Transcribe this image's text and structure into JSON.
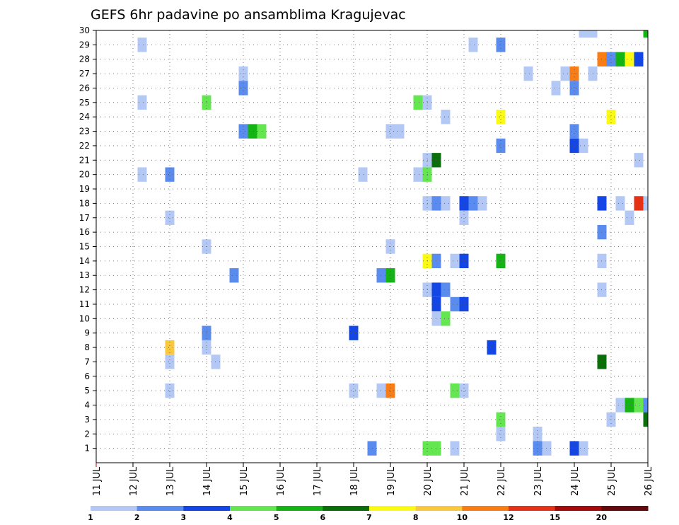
{
  "chart_data": {
    "type": "heatmap",
    "title": "GEFS 6hr padavine po ansamblima Kragujevac",
    "xlabel": "",
    "ylabel": "",
    "x_ticks": [
      "11 JUL",
      "12 JUL",
      "13 JUL",
      "14 JUL",
      "15 JUL",
      "16 JUL",
      "17 JUL",
      "18 JUL",
      "19 JUL",
      "20 JUL",
      "21 JUL",
      "22 JUL",
      "23 JUL",
      "24 JUL",
      "25 JUL",
      "26 JUL"
    ],
    "y_ticks": [
      1,
      2,
      3,
      4,
      5,
      6,
      7,
      8,
      9,
      10,
      11,
      12,
      13,
      14,
      15,
      16,
      17,
      18,
      19,
      20,
      21,
      22,
      23,
      24,
      25,
      26,
      27,
      28,
      29,
      30
    ],
    "xlim": [
      0,
      15
    ],
    "ylim": [
      0,
      30
    ],
    "grid": true,
    "x_unit": "days since 11 JUL",
    "y_unit": "ensemble member",
    "legend": {
      "position": "bottom",
      "thresholds": [
        "1",
        "2",
        "3",
        "4",
        "5",
        "6",
        "7",
        "8",
        "10",
        "12",
        "15",
        "20"
      ],
      "colors": [
        "#b4c8f5",
        "#5a8cf0",
        "#1446e6",
        "#64e650",
        "#14b414",
        "#0a6e0a",
        "#fafa14",
        "#fac83c",
        "#fa7d14",
        "#e63214",
        "#a50a0a",
        "#640a0a"
      ]
    },
    "cells": [
      {
        "x": 13.25,
        "y": 30,
        "c": 0
      },
      {
        "x": 13.5,
        "y": 30,
        "c": 0
      },
      {
        "x": 15,
        "y": 30,
        "c": 4
      },
      {
        "x": 1.25,
        "y": 29,
        "c": 0
      },
      {
        "x": 10.25,
        "y": 29,
        "c": 0
      },
      {
        "x": 11,
        "y": 29,
        "c": 1
      },
      {
        "x": 13.75,
        "y": 28,
        "c": 8
      },
      {
        "x": 14,
        "y": 28,
        "c": 1
      },
      {
        "x": 14.25,
        "y": 28,
        "c": 4
      },
      {
        "x": 14.5,
        "y": 28,
        "c": 6
      },
      {
        "x": 14.75,
        "y": 28,
        "c": 2
      },
      {
        "x": 4,
        "y": 27,
        "c": 0
      },
      {
        "x": 11.75,
        "y": 27,
        "c": 0
      },
      {
        "x": 12.75,
        "y": 27,
        "c": 0
      },
      {
        "x": 13,
        "y": 27,
        "c": 8
      },
      {
        "x": 13.5,
        "y": 27,
        "c": 0
      },
      {
        "x": 4,
        "y": 26,
        "c": 1
      },
      {
        "x": 12.5,
        "y": 26,
        "c": 0
      },
      {
        "x": 13,
        "y": 26,
        "c": 1
      },
      {
        "x": 1.25,
        "y": 25,
        "c": 0
      },
      {
        "x": 3,
        "y": 25,
        "c": 3
      },
      {
        "x": 8.75,
        "y": 25,
        "c": 3
      },
      {
        "x": 9,
        "y": 25,
        "c": 0
      },
      {
        "x": 9.5,
        "y": 24,
        "c": 0
      },
      {
        "x": 11,
        "y": 24,
        "c": 6
      },
      {
        "x": 14,
        "y": 24,
        "c": 6
      },
      {
        "x": 4,
        "y": 23,
        "c": 1
      },
      {
        "x": 4.25,
        "y": 23,
        "c": 4
      },
      {
        "x": 4.5,
        "y": 23,
        "c": 3
      },
      {
        "x": 8,
        "y": 23,
        "c": 0
      },
      {
        "x": 8.25,
        "y": 23,
        "c": 0
      },
      {
        "x": 13,
        "y": 23,
        "c": 1
      },
      {
        "x": 11,
        "y": 22,
        "c": 1
      },
      {
        "x": 13,
        "y": 22,
        "c": 2
      },
      {
        "x": 13.25,
        "y": 22,
        "c": 0
      },
      {
        "x": 9,
        "y": 21,
        "c": 0
      },
      {
        "x": 9.25,
        "y": 21,
        "c": 5
      },
      {
        "x": 14.75,
        "y": 21,
        "c": 0
      },
      {
        "x": 1.25,
        "y": 20,
        "c": 0
      },
      {
        "x": 2,
        "y": 20,
        "c": 1
      },
      {
        "x": 7.25,
        "y": 20,
        "c": 0
      },
      {
        "x": 8.75,
        "y": 20,
        "c": 0
      },
      {
        "x": 9,
        "y": 20,
        "c": 3
      },
      {
        "x": 9,
        "y": 18,
        "c": 0
      },
      {
        "x": 9.25,
        "y": 18,
        "c": 1
      },
      {
        "x": 9.5,
        "y": 18,
        "c": 0
      },
      {
        "x": 10,
        "y": 18,
        "c": 2
      },
      {
        "x": 10.25,
        "y": 18,
        "c": 1
      },
      {
        "x": 10.5,
        "y": 18,
        "c": 0
      },
      {
        "x": 13.75,
        "y": 18,
        "c": 2
      },
      {
        "x": 14.25,
        "y": 18,
        "c": 0
      },
      {
        "x": 14.75,
        "y": 18,
        "c": 9
      },
      {
        "x": 15,
        "y": 18,
        "c": 0
      },
      {
        "x": 2,
        "y": 17,
        "c": 0
      },
      {
        "x": 10,
        "y": 17,
        "c": 0
      },
      {
        "x": 14.5,
        "y": 17,
        "c": 0
      },
      {
        "x": 13.75,
        "y": 16,
        "c": 1
      },
      {
        "x": 3,
        "y": 15,
        "c": 0
      },
      {
        "x": 8,
        "y": 15,
        "c": 0
      },
      {
        "x": 9,
        "y": 14,
        "c": 6
      },
      {
        "x": 9.25,
        "y": 14,
        "c": 1
      },
      {
        "x": 9.75,
        "y": 14,
        "c": 0
      },
      {
        "x": 10,
        "y": 14,
        "c": 2
      },
      {
        "x": 11,
        "y": 14,
        "c": 4
      },
      {
        "x": 13.75,
        "y": 14,
        "c": 0
      },
      {
        "x": 3.75,
        "y": 13,
        "c": 1
      },
      {
        "x": 7.75,
        "y": 13,
        "c": 1
      },
      {
        "x": 8,
        "y": 13,
        "c": 4
      },
      {
        "x": 9,
        "y": 12,
        "c": 0
      },
      {
        "x": 9.25,
        "y": 12,
        "c": 2
      },
      {
        "x": 9.5,
        "y": 12,
        "c": 1
      },
      {
        "x": 13.75,
        "y": 12,
        "c": 0
      },
      {
        "x": 9.25,
        "y": 11,
        "c": 2
      },
      {
        "x": 9.75,
        "y": 11,
        "c": 1
      },
      {
        "x": 10,
        "y": 11,
        "c": 2
      },
      {
        "x": 9.25,
        "y": 10,
        "c": 0
      },
      {
        "x": 9.5,
        "y": 10,
        "c": 3
      },
      {
        "x": 3,
        "y": 9,
        "c": 1
      },
      {
        "x": 7,
        "y": 9,
        "c": 2
      },
      {
        "x": 2,
        "y": 8,
        "c": 7
      },
      {
        "x": 3,
        "y": 8,
        "c": 0
      },
      {
        "x": 10.75,
        "y": 8,
        "c": 2
      },
      {
        "x": 2,
        "y": 7,
        "c": 0
      },
      {
        "x": 3.25,
        "y": 7,
        "c": 0
      },
      {
        "x": 13.75,
        "y": 7,
        "c": 5
      },
      {
        "x": 2,
        "y": 5,
        "c": 0
      },
      {
        "x": 7,
        "y": 5,
        "c": 0
      },
      {
        "x": 7.75,
        "y": 5,
        "c": 0
      },
      {
        "x": 8,
        "y": 5,
        "c": 8
      },
      {
        "x": 9.75,
        "y": 5,
        "c": 3
      },
      {
        "x": 10,
        "y": 5,
        "c": 0
      },
      {
        "x": 14.25,
        "y": 4,
        "c": 0
      },
      {
        "x": 14.5,
        "y": 4,
        "c": 4
      },
      {
        "x": 14.75,
        "y": 4,
        "c": 3
      },
      {
        "x": 15,
        "y": 4,
        "c": 1
      },
      {
        "x": 11,
        "y": 3,
        "c": 3
      },
      {
        "x": 14,
        "y": 3,
        "c": 0
      },
      {
        "x": 15,
        "y": 3,
        "c": 5
      },
      {
        "x": 11,
        "y": 2,
        "c": 0
      },
      {
        "x": 12,
        "y": 2,
        "c": 0
      },
      {
        "x": 7.5,
        "y": 1,
        "c": 1
      },
      {
        "x": 9,
        "y": 1,
        "c": 3
      },
      {
        "x": 9.25,
        "y": 1,
        "c": 3
      },
      {
        "x": 9.75,
        "y": 1,
        "c": 0
      },
      {
        "x": 12,
        "y": 1,
        "c": 1
      },
      {
        "x": 12.25,
        "y": 1,
        "c": 0
      },
      {
        "x": 13,
        "y": 1,
        "c": 2
      },
      {
        "x": 13.25,
        "y": 1,
        "c": 0
      }
    ]
  }
}
